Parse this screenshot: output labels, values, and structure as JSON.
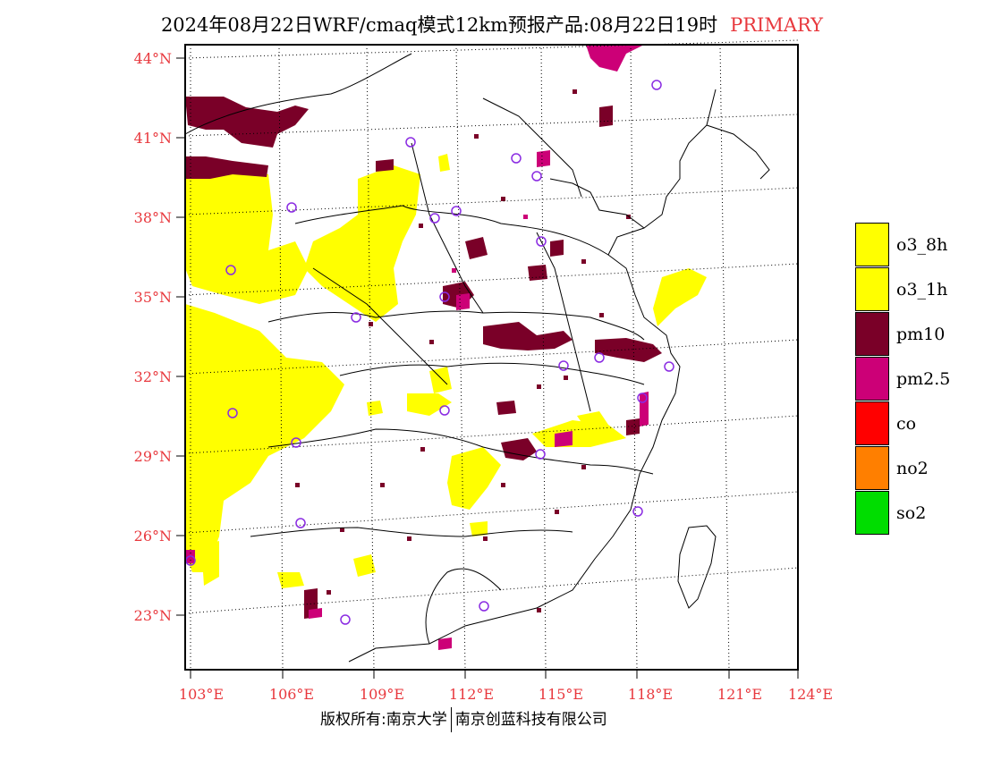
{
  "title": {
    "main": "2024年08月22日WRF/cmaq模式12km预报产品:08月22日19时",
    "tag": "PRIMARY"
  },
  "axes": {
    "lat_labels": [
      "44°N",
      "41°N",
      "38°N",
      "35°N",
      "32°N",
      "29°N",
      "26°N",
      "23°N"
    ],
    "lon_labels": [
      "103°E",
      "106°E",
      "109°E",
      "112°E",
      "115°E",
      "118°E",
      "121°E",
      "124°E"
    ]
  },
  "legend": {
    "items": [
      {
        "label": "o3_8h",
        "color": "#ffff00"
      },
      {
        "label": "o3_1h",
        "color": "#ffff00"
      },
      {
        "label": "pm10",
        "color": "#7a0028"
      },
      {
        "label": "pm2.5",
        "color": "#cc0077"
      },
      {
        "label": "co",
        "color": "#ff0000"
      },
      {
        "label": "no2",
        "color": "#ff7f00"
      },
      {
        "label": "so2",
        "color": "#00dd00"
      }
    ]
  },
  "colors": {
    "o3": "#ffff00",
    "pm10": "#7a0028",
    "pm25": "#cc0077",
    "station": "#8a2be2",
    "label": "#e8383d"
  },
  "footer": {
    "left": "版权所有:南京大学",
    "right": "南京创蓝科技有限公司"
  }
}
